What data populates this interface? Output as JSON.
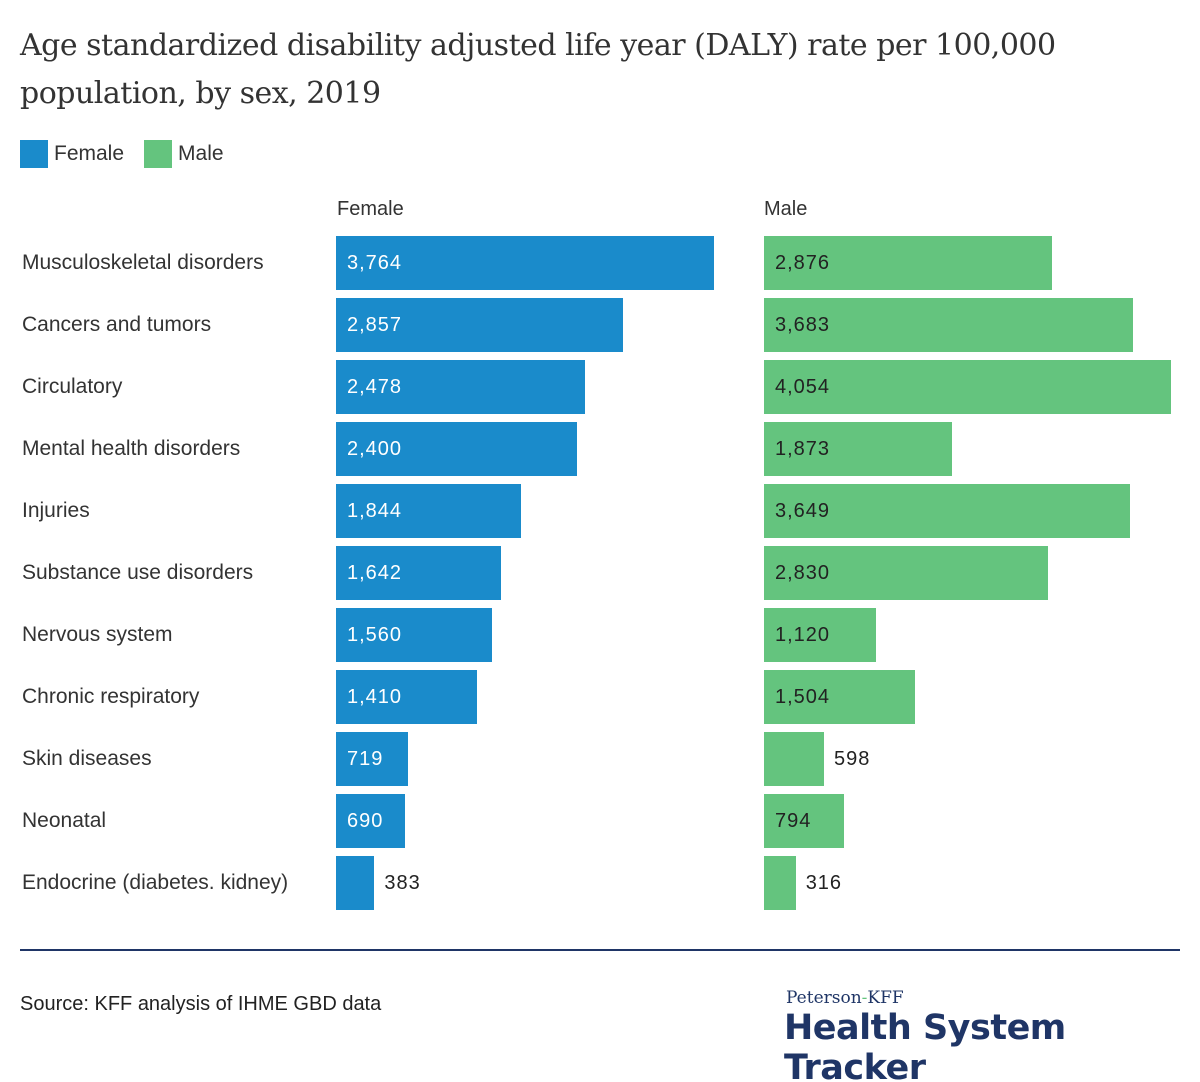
{
  "chart_data": {
    "type": "bar",
    "orientation": "horizontal",
    "title": "Age standardized disability adjusted life year (DALY) rate per 100,000 population, by sex, 2019",
    "categories": [
      "Musculoskeletal disorders",
      "Cancers and tumors",
      "Circulatory",
      "Mental health disorders",
      "Injuries",
      "Substance use disorders",
      "Nervous system",
      "Chronic respiratory",
      "Skin diseases",
      "Neonatal",
      "Endocrine (diabetes. kidney)"
    ],
    "series": [
      {
        "name": "Female",
        "color": "#1a8bcb",
        "values": [
          3764,
          2857,
          2478,
          2400,
          1844,
          1642,
          1560,
          1410,
          719,
          690,
          383
        ],
        "labels": [
          "3,764",
          "2,857",
          "2,478",
          "2,400",
          "1,844",
          "1,642",
          "1,560",
          "1,410",
          "719",
          "690",
          "383"
        ]
      },
      {
        "name": "Male",
        "color": "#64c47e",
        "values": [
          2876,
          3683,
          4054,
          1873,
          3649,
          2830,
          1120,
          1504,
          598,
          794,
          316
        ],
        "labels": [
          "2,876",
          "3,683",
          "4,054",
          "1,873",
          "3,649",
          "2,830",
          "1,120",
          "1,504",
          "598",
          "794",
          "316"
        ]
      }
    ],
    "layout": "small multiples side by side",
    "legend": "top-left",
    "grid": false
  },
  "legend": {
    "female": "Female",
    "male": "Male"
  },
  "panels": {
    "female": "Female",
    "male": "Male"
  },
  "footer": {
    "source": "Source: KFF analysis of IHME GBD data",
    "logo_top": "Peterson-KFF",
    "logo_main": "Health System Tracker"
  }
}
